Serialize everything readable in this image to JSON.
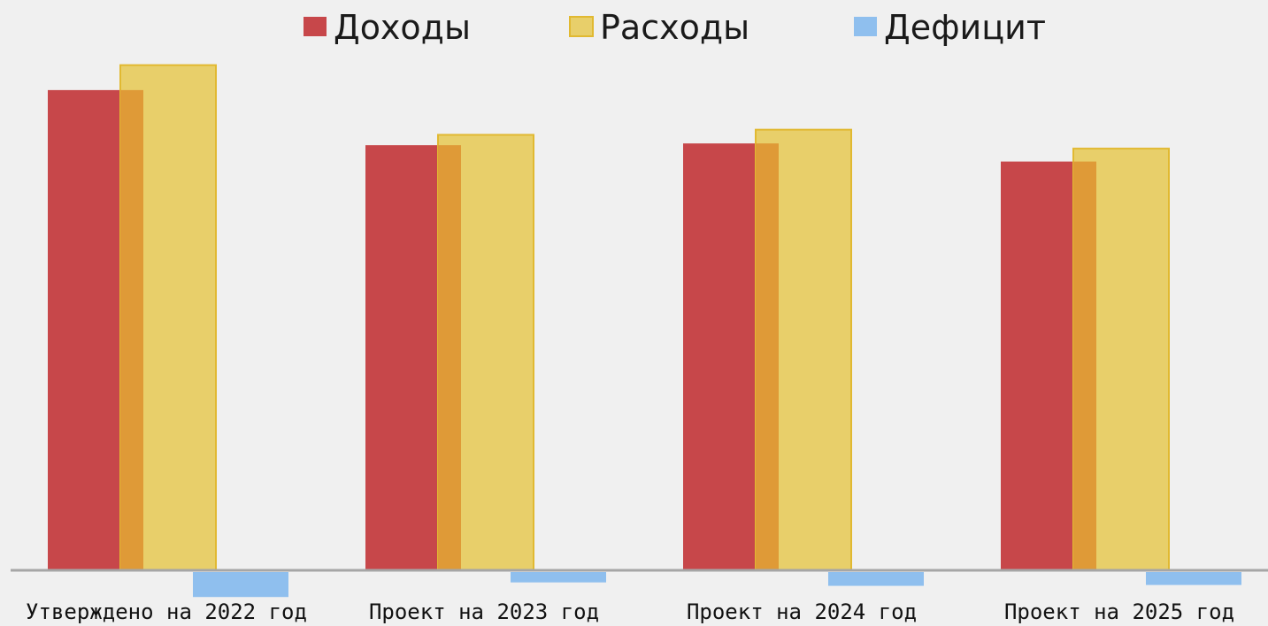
{
  "chart_data": {
    "type": "bar",
    "title": "",
    "xlabel": "",
    "ylabel": "",
    "categories": [
      "Утверждено на 2022 год",
      "Проект на 2023 год",
      "Проект на 2024 год",
      "Проект на 2025 год"
    ],
    "series": [
      {
        "name": "Доходы",
        "color": "#c7474a",
        "values": [
          558,
          494,
          496,
          475
        ]
      },
      {
        "name": "Расходы",
        "color": "#e8cf6a",
        "values": [
          587,
          506,
          512,
          490
        ]
      },
      {
        "name": "Дефицит",
        "color": "#8fbfee",
        "values": [
          -29,
          -12,
          -16,
          -15
        ]
      }
    ],
    "overlap_color": "#df9a37",
    "ylim": [
      -40,
      600
    ],
    "grid": false,
    "legend_position": "top-center"
  }
}
